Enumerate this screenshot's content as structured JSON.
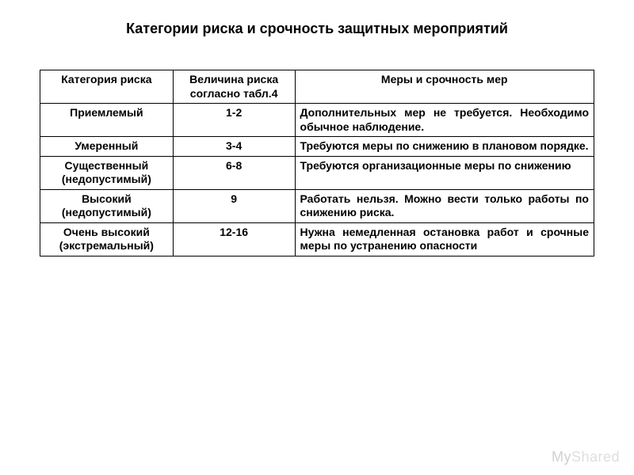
{
  "title": "Категории риска и срочность защитных мероприятий",
  "table": {
    "headers": {
      "col1": "Категория риска",
      "col2": "Величина риска согласно табл.4",
      "col3": "Меры и срочность мер"
    },
    "rows": [
      {
        "category": "Приемлемый",
        "value": "1-2",
        "measures": "Дополнительных мер не требуется. Необходимо обычное наблюдение."
      },
      {
        "category": "Умеренный",
        "value": "3-4",
        "measures": "Требуются меры по снижению в плановом порядке."
      },
      {
        "category": "Существенный (недопустимый)",
        "value": "6-8",
        "measures": "Требуются организационные меры по снижению"
      },
      {
        "category": "Высокий (недопустимый)",
        "value": "9",
        "measures": "Работать нельзя. Можно вести только работы по снижению риска."
      },
      {
        "category": "Очень высокий (экстремальный)",
        "value": "12-16",
        "measures": "Нужна немедленная остановка работ и срочные меры по устранению опасности"
      }
    ]
  },
  "watermark": {
    "part1": "My",
    "part2": "Shared"
  },
  "styling": {
    "background_color": "#ffffff",
    "text_color": "#000000",
    "border_color": "#000000",
    "title_fontsize": 18,
    "cell_fontsize": 14,
    "watermark_color": "#d9d9d9",
    "font_family": "Arial"
  }
}
